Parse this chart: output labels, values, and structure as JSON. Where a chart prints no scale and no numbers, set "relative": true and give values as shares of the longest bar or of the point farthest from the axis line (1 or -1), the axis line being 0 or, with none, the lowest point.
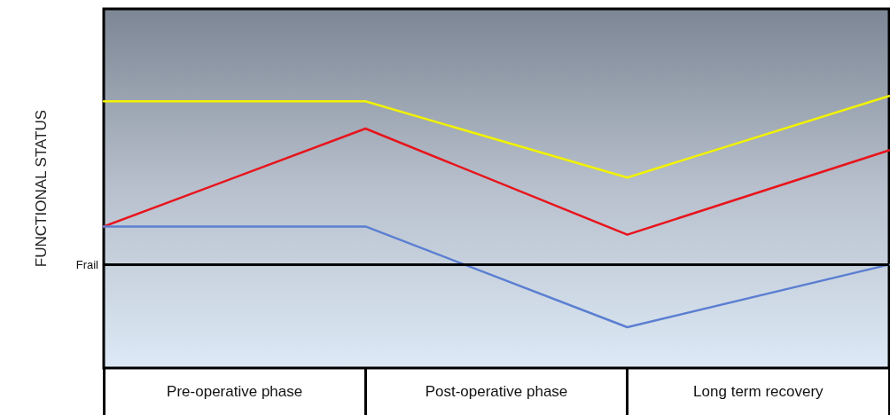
{
  "chart_data": {
    "type": "line",
    "relative": true,
    "ylabel": "FUNCTIONAL STATUS",
    "categories": [
      null,
      null,
      null,
      null
    ],
    "series": [
      {
        "color": "#f2f200",
        "values": [
          0.98,
          0.98,
          0.7,
          1
        ]
      },
      {
        "color": "#e8141c",
        "values": [
          0.52,
          0.88,
          0.49,
          0.8
        ]
      },
      {
        "color": "#5b7fd1",
        "values": [
          0.52,
          0.52,
          0.15,
          0.38
        ]
      }
    ],
    "ref_lines": [
      {
        "axis": "y",
        "value": 0.38,
        "label": "Frail",
        "color": "#000000"
      }
    ],
    "annotations": [
      "Pre-operative phase",
      "Post-operative phase",
      "Long term recovery"
    ],
    "line_style": "solid",
    "grid": false
  }
}
